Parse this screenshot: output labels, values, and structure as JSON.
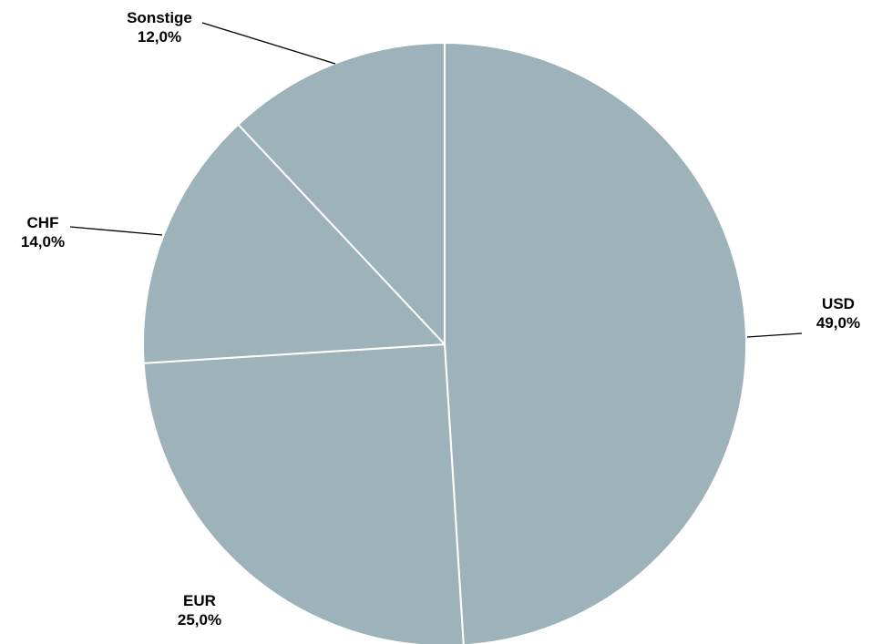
{
  "chart_data": {
    "type": "pie",
    "title": "",
    "slices": [
      {
        "label": "USD",
        "value": 49.0,
        "value_label": "49,0%"
      },
      {
        "label": "EUR",
        "value": 25.0,
        "value_label": "25,0%"
      },
      {
        "label": "CHF",
        "value": 14.0,
        "value_label": "14,0%"
      },
      {
        "label": "Sonstige",
        "value": 12.0,
        "value_label": "12,0%"
      }
    ],
    "start": "top",
    "direction": "clockwise",
    "slice_color": "#9db3b9",
    "separator_color": "#ffffff",
    "legend": "none"
  }
}
